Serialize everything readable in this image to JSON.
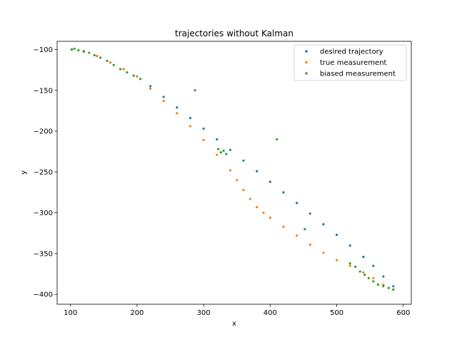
{
  "chart_data": {
    "type": "scatter",
    "title": "trajectories without Kalman",
    "xlabel": "x",
    "ylabel": "y",
    "xlim": [
      80,
      612
    ],
    "ylim": [
      -412,
      -90
    ],
    "xticks": [
      100,
      200,
      300,
      400,
      500,
      600
    ],
    "yticks": [
      -100,
      -150,
      -200,
      -250,
      -300,
      -350,
      -400
    ],
    "legend_position": "top-right",
    "grid": false,
    "series": [
      {
        "name": "desired trajectory",
        "color": "#1f77b4",
        "x": [
          102,
          120,
          140,
          160,
          180,
          200,
          220,
          240,
          260,
          280,
          300,
          320,
          340,
          360,
          380,
          400,
          420,
          440,
          460,
          480,
          500,
          520,
          540,
          555,
          570,
          585
        ],
        "y": [
          -100,
          -103,
          -108,
          -116,
          -124,
          -133,
          -145,
          -158,
          -171,
          -184,
          -197,
          -210,
          -223,
          -236,
          -249,
          -262,
          -275,
          -288,
          -301,
          -314,
          -327,
          -340,
          -354,
          -365,
          -378,
          -390
        ]
      },
      {
        "name": "true measurement",
        "color": "#ff7f0e",
        "x": [
          102,
          120,
          140,
          160,
          180,
          200,
          220,
          240,
          260,
          280,
          300,
          320,
          340,
          350,
          360,
          370,
          380,
          390,
          400,
          420,
          440,
          460,
          480,
          500,
          520,
          540,
          555,
          570,
          585
        ],
        "y": [
          -100,
          -103,
          -108,
          -116,
          -124,
          -133,
          -148,
          -163,
          -178,
          -194,
          -211,
          -229,
          -248,
          -260,
          -272,
          -283,
          -293,
          -300,
          -306,
          -317,
          -328,
          -339,
          -349,
          -358,
          -365,
          -373,
          -380,
          -388,
          -394
        ]
      },
      {
        "name": "biased measurement",
        "color": "#2ca02c",
        "x": [
          102,
          106,
          112,
          120,
          128,
          136,
          145,
          155,
          165,
          175,
          185,
          195,
          205,
          287,
          322,
          326,
          330,
          334,
          410,
          452,
          520,
          528,
          535,
          542,
          548,
          555,
          562,
          570,
          578,
          585
        ],
        "y": [
          -100,
          -99,
          -101,
          -102,
          -104,
          -107,
          -110,
          -114,
          -119,
          -124,
          -128,
          -132,
          -136,
          -150,
          -222,
          -226,
          -224,
          -228,
          -210,
          -320,
          -362,
          -366,
          -372,
          -376,
          -380,
          -384,
          -388,
          -390,
          -392,
          -394
        ]
      }
    ]
  }
}
